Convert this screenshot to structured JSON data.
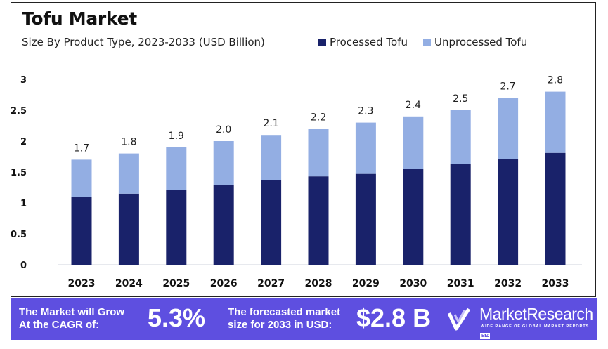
{
  "header": {
    "title": "Tofu Market",
    "subtitle": "Size By Product Type, 2023-2033  (USD Billion)"
  },
  "legend": [
    {
      "label": "Processed Tofu",
      "color": "#19226a"
    },
    {
      "label": "Unprocessed Tofu",
      "color": "#93aee3"
    }
  ],
  "chart_data": {
    "type": "bar",
    "stacked": true,
    "title": "Tofu Market",
    "subtitle": "Size By Product Type, 2023-2033 (USD Billion)",
    "xlabel": "",
    "ylabel": "",
    "ylim": [
      0,
      3
    ],
    "yticks": [
      "0",
      "0.5",
      "1",
      "1.5",
      "2",
      "2.5",
      "3"
    ],
    "ytick_values": [
      0,
      0.5,
      1,
      1.5,
      2,
      2.5,
      3
    ],
    "grid": false,
    "legend_position": "top-right",
    "categories": [
      "2023",
      "2024",
      "2025",
      "2026",
      "2027",
      "2028",
      "2029",
      "2030",
      "2031",
      "2032",
      "2033"
    ],
    "series": [
      {
        "name": "Processed Tofu",
        "color": "#19226a",
        "values": [
          1.1,
          1.15,
          1.21,
          1.29,
          1.37,
          1.43,
          1.47,
          1.55,
          1.63,
          1.71,
          1.81
        ]
      },
      {
        "name": "Unprocessed Tofu",
        "color": "#93aee3",
        "values": [
          0.6,
          0.65,
          0.69,
          0.71,
          0.73,
          0.77,
          0.83,
          0.85,
          0.87,
          0.99,
          0.99
        ]
      }
    ],
    "totals": [
      1.7,
      1.8,
      1.9,
      2.0,
      2.1,
      2.2,
      2.3,
      2.4,
      2.5,
      2.7,
      2.8
    ],
    "total_labels": [
      "1.7",
      "1.8",
      "1.9",
      "2.0",
      "2.1",
      "2.2",
      "2.3",
      "2.4",
      "2.5",
      "2.7",
      "2.8"
    ]
  },
  "banner": {
    "cagr_text_line1": "The Market will Grow",
    "cagr_text_line2": "At the CAGR of:",
    "cagr_value": "5.3%",
    "forecast_text_line1": "The forecasted market",
    "forecast_text_line2": "size for 2033 in USD:",
    "forecast_value": "$2.8 B",
    "logo_name": "MarketResearch",
    "logo_badge": "BIZ",
    "logo_tagline": "WIDE RANGE OF GLOBAL MARKET REPORTS",
    "background_color": "#5e4fe0"
  }
}
